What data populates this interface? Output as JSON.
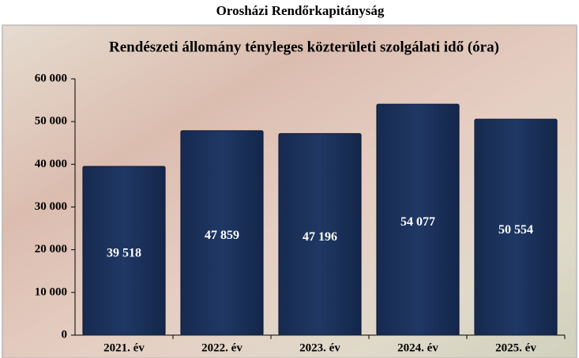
{
  "chart_data": {
    "type": "bar",
    "title": "Orosházi Rendőrkapitányság",
    "subtitle": "Rendészeti állomány tényleges közterületi szolgálati idő (óra)",
    "categories": [
      "2021. év",
      "2022. év",
      "2023. év",
      "2024. év",
      "2025. év"
    ],
    "values": [
      39518,
      47859,
      47196,
      54077,
      50554
    ],
    "value_labels": [
      "39 518",
      "47 859",
      "47 196",
      "54 077",
      "50 554"
    ],
    "color": "#1f3864",
    "ylim": [
      0,
      60000
    ],
    "yticks": [
      0,
      {
        "value": 10000,
        "label": "10 000"
      },
      {
        "value": 20000,
        "label": "20 000"
      },
      {
        "value": 30000,
        "label": "30 000"
      },
      {
        "value": 40000,
        "label": "40 000"
      },
      {
        "value": 50000,
        "label": "50 000"
      },
      {
        "value": 60000,
        "label": "60 000"
      }
    ]
  }
}
